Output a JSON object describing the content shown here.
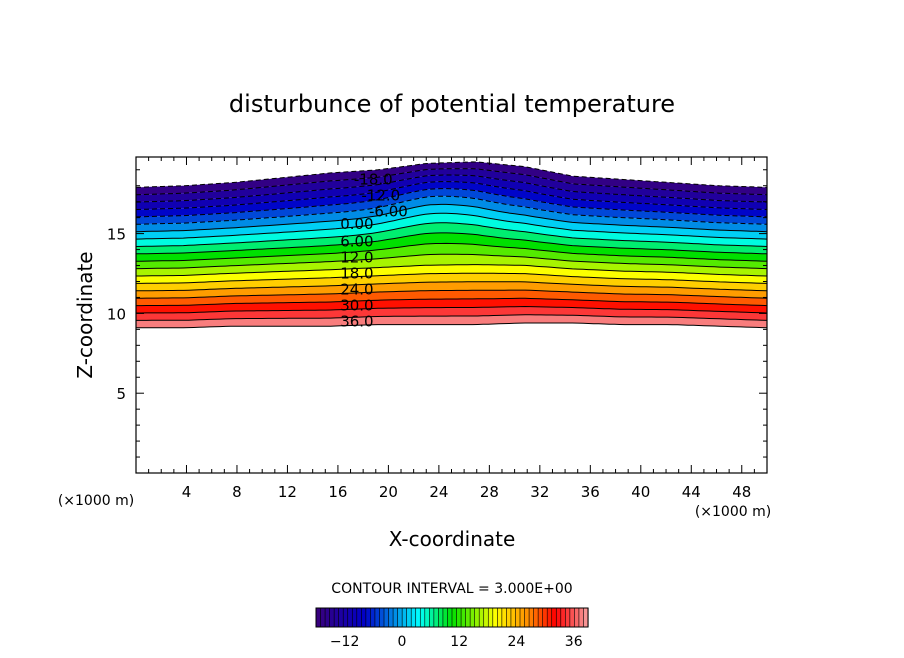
{
  "chart_data": {
    "type": "contour",
    "title": "disturbunce of potential temperature",
    "xlabel": "X-coordinate",
    "ylabel": "Z-coordinate",
    "x_unit_left": "(×1000 m)",
    "x_unit_right": "(×1000 m)",
    "xlim": [
      0,
      50
    ],
    "ylim": [
      0,
      19.8
    ],
    "x_ticks": [
      4,
      8,
      12,
      16,
      20,
      24,
      28,
      32,
      36,
      40,
      44,
      48
    ],
    "x_tick_labels": [
      "4",
      "8",
      "12",
      "16",
      "20",
      "24",
      "28",
      "32",
      "36",
      "40",
      "44",
      "48"
    ],
    "y_ticks": [
      5,
      10,
      15
    ],
    "y_tick_labels": [
      "5",
      "10",
      "15"
    ],
    "contour_interval_text": "CONTOUR INTERVAL = 3.000E+00",
    "contour_interval": 3,
    "levels": [
      -18,
      -15,
      -12,
      -9,
      -6,
      -3,
      0,
      3,
      6,
      9,
      12,
      15,
      18,
      21,
      24,
      27,
      30,
      33,
      36,
      39
    ],
    "contour_labels": [
      {
        "text": "-18.0",
        "x": 18.8,
        "z": 18.4
      },
      {
        "text": "-12.0",
        "x": 19.4,
        "z": 17.4
      },
      {
        "text": "-6.00",
        "x": 20.0,
        "z": 16.4
      },
      {
        "text": "0.00",
        "x": 17.5,
        "z": 15.6
      },
      {
        "text": "6.00",
        "x": 17.5,
        "z": 14.5
      },
      {
        "text": "12.0",
        "x": 17.5,
        "z": 13.5
      },
      {
        "text": "18.0",
        "x": 17.5,
        "z": 12.5
      },
      {
        "text": "24.0",
        "x": 17.5,
        "z": 11.5
      },
      {
        "text": "30.0",
        "x": 17.5,
        "z": 10.5
      },
      {
        "text": "36.0",
        "x": 17.5,
        "z": 9.5
      }
    ],
    "field": {
      "bottom_z": [
        9.1,
        9.1,
        9.2,
        9.2,
        9.2,
        9.3,
        9.3,
        9.3,
        9.4,
        9.4,
        9.3,
        9.3,
        9.2,
        9.1
      ],
      "top_z": [
        17.9,
        18.0,
        18.2,
        18.5,
        18.8,
        19.0,
        19.4,
        19.5,
        19.2,
        18.6,
        18.4,
        18.2,
        18.0,
        17.9
      ],
      "bump_center_x": 24,
      "bump_amplitude": 0.6
    },
    "colorbar": {
      "tick_labels": [
        "−12",
        "0",
        "12",
        "24",
        "36"
      ],
      "tick_values": [
        -12,
        0,
        12,
        24,
        36
      ],
      "range": [
        -18,
        39
      ]
    },
    "colors": {
      "cold_end": "#3a007a",
      "blue": "#0000c8",
      "cyan": "#00ffff",
      "green": "#00e000",
      "yellow": "#ffff00",
      "orange": "#ff8c00",
      "red": "#ff0000",
      "warm_end": "#f6a0a0"
    }
  }
}
